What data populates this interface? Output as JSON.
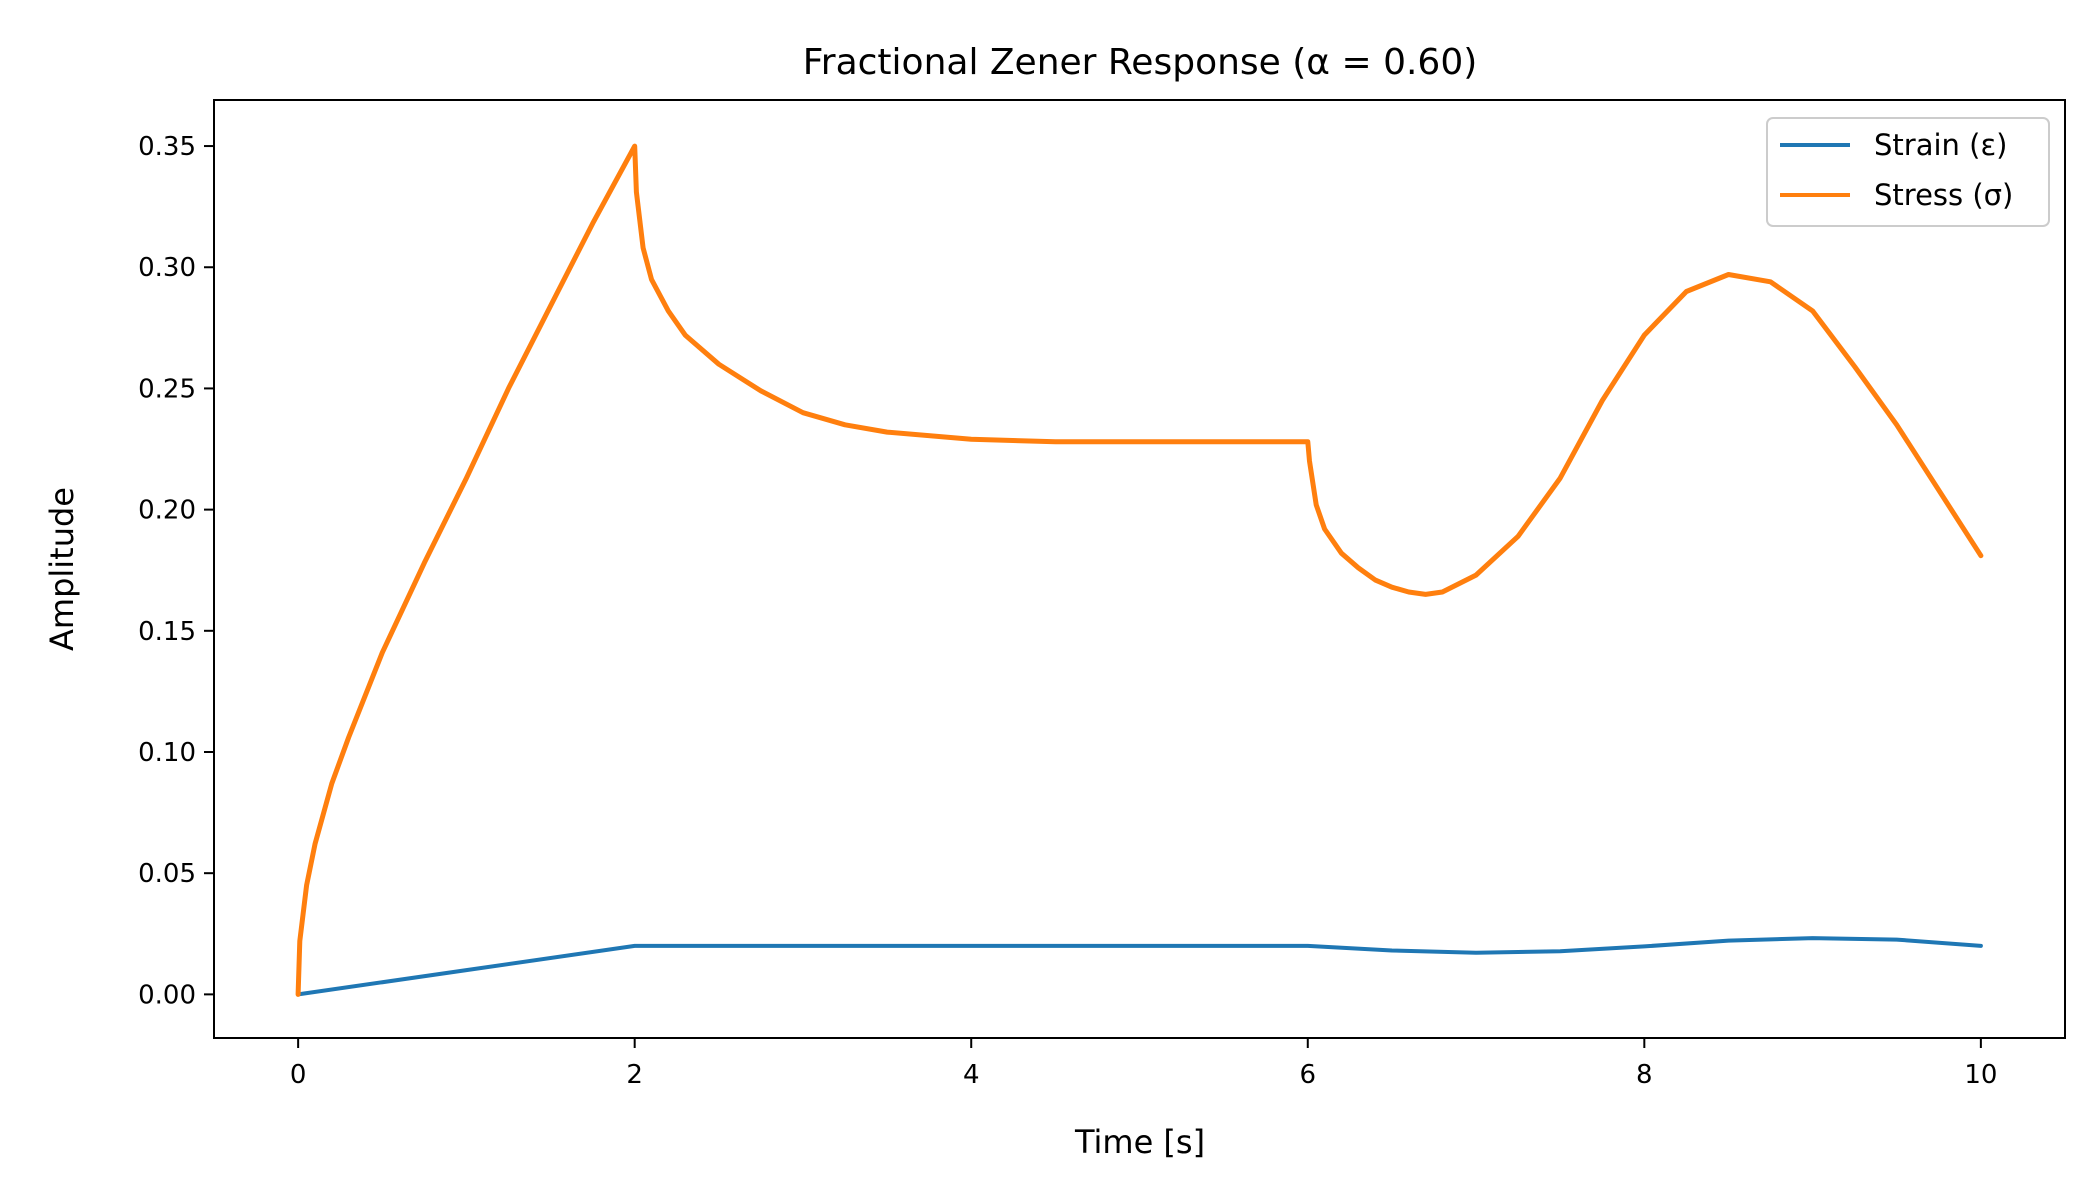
{
  "chart_data": {
    "type": "line",
    "title": "Fractional Zener Response (α = 0.60)",
    "xlabel": "Time [s]",
    "ylabel": "Amplitude",
    "xlim": [
      -0.5,
      10.5
    ],
    "ylim": [
      -0.018,
      0.369
    ],
    "xticks": [
      0,
      2,
      4,
      6,
      8,
      10
    ],
    "xtick_labels": [
      "0",
      "2",
      "4",
      "6",
      "8",
      "10"
    ],
    "yticks": [
      0.0,
      0.05,
      0.1,
      0.15,
      0.2,
      0.25,
      0.3,
      0.35
    ],
    "ytick_labels": [
      "0.00",
      "0.05",
      "0.10",
      "0.15",
      "0.20",
      "0.25",
      "0.30",
      "0.35"
    ],
    "grid": false,
    "legend": "top-right",
    "series": [
      {
        "name": "Strain (ε)",
        "color": "#1f77b4",
        "x": [
          0,
          1,
          2,
          3,
          4,
          5,
          6,
          6.5,
          7,
          7.5,
          8,
          8.5,
          9,
          9.5,
          10
        ],
        "values": [
          0.0,
          0.01,
          0.02,
          0.02,
          0.02,
          0.02,
          0.02,
          0.0181,
          0.0172,
          0.0178,
          0.0198,
          0.0222,
          0.0232,
          0.0226,
          0.02
        ]
      },
      {
        "name": "Stress (σ)",
        "color": "#ff7f0e",
        "x": [
          0,
          0.01,
          0.05,
          0.1,
          0.2,
          0.3,
          0.5,
          0.75,
          1.0,
          1.25,
          1.5,
          1.75,
          2.0,
          2.01,
          2.05,
          2.1,
          2.2,
          2.3,
          2.5,
          2.75,
          3.0,
          3.25,
          3.5,
          4.0,
          4.5,
          5.0,
          5.5,
          6.0,
          6.01,
          6.05,
          6.1,
          6.2,
          6.3,
          6.4,
          6.5,
          6.6,
          6.7,
          6.8,
          7.0,
          7.25,
          7.5,
          7.75,
          8.0,
          8.25,
          8.5,
          8.75,
          9.0,
          9.25,
          9.5,
          9.75,
          10.0
        ],
        "values": [
          0.0,
          0.022,
          0.045,
          0.062,
          0.087,
          0.106,
          0.141,
          0.178,
          0.213,
          0.25,
          0.284,
          0.318,
          0.35,
          0.331,
          0.308,
          0.295,
          0.282,
          0.272,
          0.26,
          0.249,
          0.24,
          0.235,
          0.232,
          0.229,
          0.228,
          0.228,
          0.228,
          0.228,
          0.22,
          0.202,
          0.192,
          0.182,
          0.176,
          0.171,
          0.168,
          0.166,
          0.165,
          0.166,
          0.173,
          0.189,
          0.213,
          0.245,
          0.272,
          0.29,
          0.297,
          0.294,
          0.282,
          0.259,
          0.235,
          0.208,
          0.181
        ]
      }
    ]
  }
}
